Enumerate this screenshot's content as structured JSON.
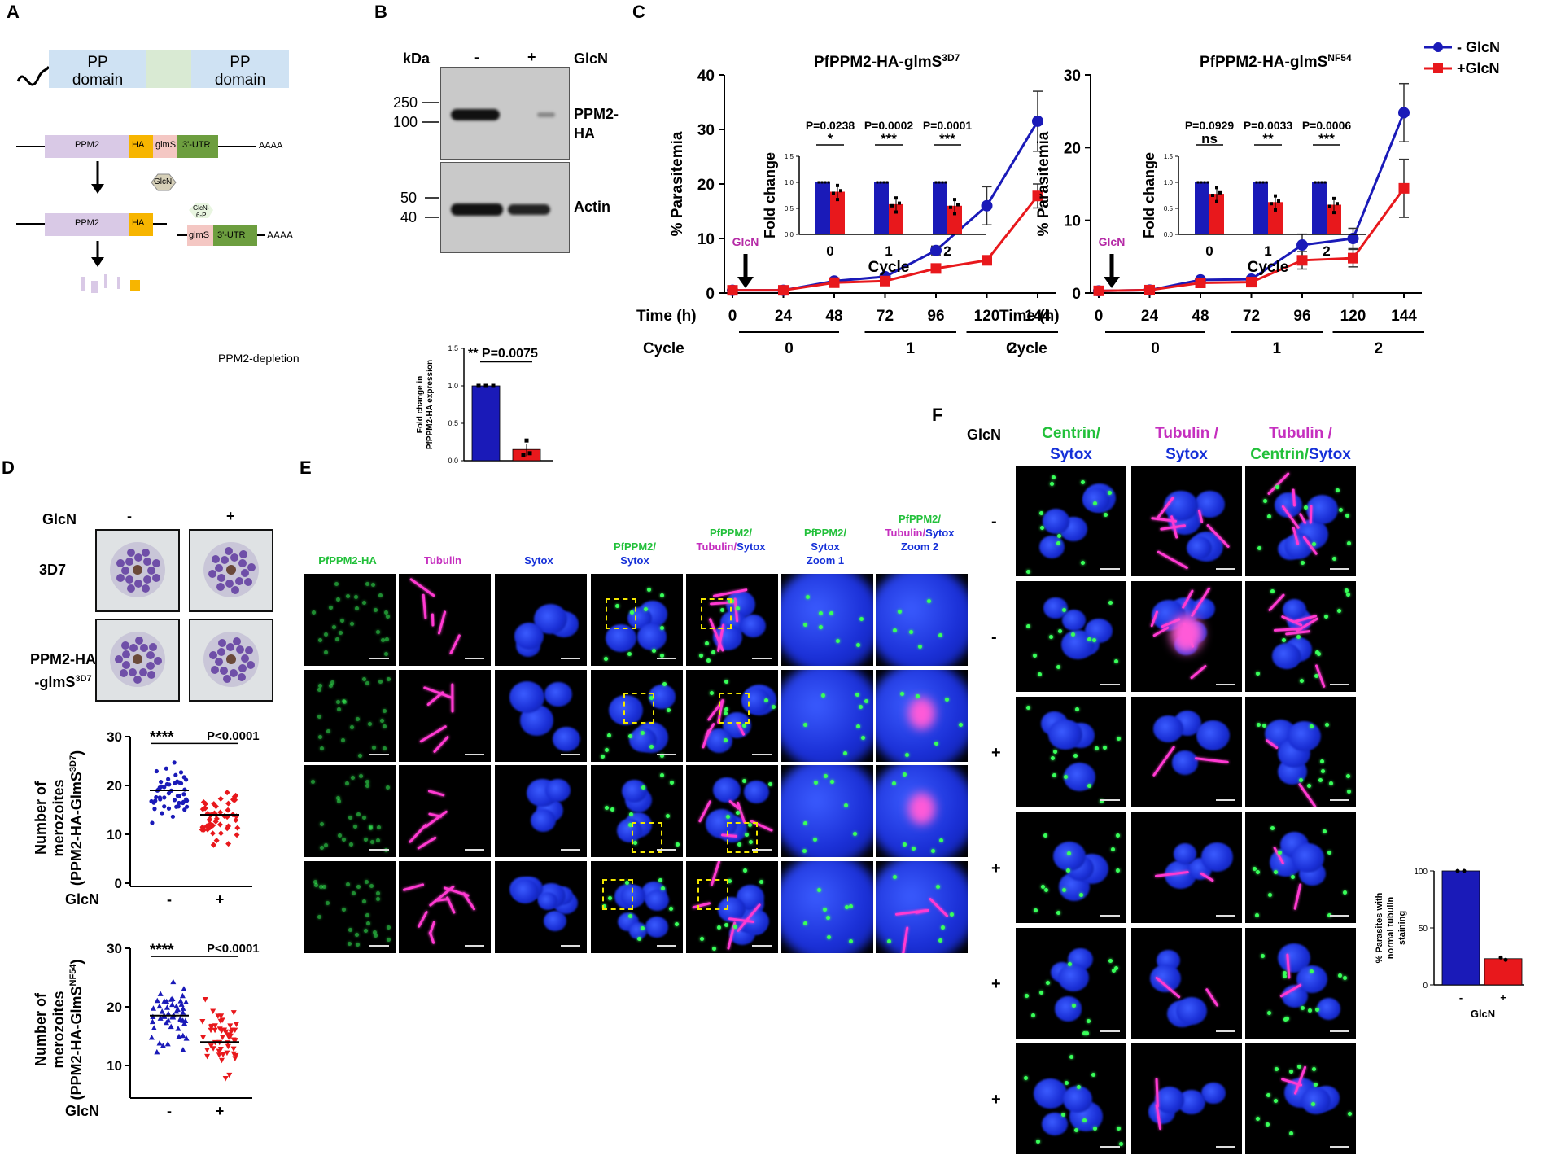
{
  "panels": {
    "A": "A",
    "B": "B",
    "C": "C",
    "D": "D",
    "E": "E",
    "F": "F"
  },
  "panelA": {
    "pp_domain_1": [
      "PP",
      "domain"
    ],
    "pp_domain_2": [
      "PP",
      "domain"
    ],
    "construct": [
      "PPM2",
      "HA",
      "glmS",
      "3'-UTR",
      "AAAA"
    ],
    "glcn": "GlcN",
    "glcn6p": [
      "GlcN-",
      "6-P"
    ],
    "cleaved_left": [
      "PPM2",
      "HA"
    ],
    "cleaved_right": [
      "glmS",
      "3'-UTR",
      "AAAA"
    ],
    "depletion": "PPM2-depletion"
  },
  "panelB": {
    "kda": "kDa",
    "minus": "-",
    "plus": "+",
    "glcn": "GlcN",
    "markers_top": [
      "250",
      "100"
    ],
    "markers_bottom": [
      "50",
      "40"
    ],
    "band_top": [
      "PPM2-",
      "HA"
    ],
    "band_bottom": "Actin",
    "chart_data": {
      "type": "bar",
      "categories": [
        "-",
        "+"
      ],
      "values": [
        1.0,
        0.15
      ],
      "ylabel": "Fold change in PfPPM2-HA expression",
      "xlabel": "GlcN",
      "yticks": [
        "0.0",
        "0.5",
        "1.0",
        "1.5"
      ],
      "ylim": [
        0,
        1.5
      ],
      "annotation": "** P=0.0075",
      "colors": [
        "#1a1ab8",
        "#e8181c"
      ]
    }
  },
  "panelC": {
    "legend": [
      "- GlcN",
      "+GlcN"
    ],
    "time_label": "Time (h)",
    "cycle_label": "Cycle",
    "cycles": [
      "0",
      "1",
      "2"
    ],
    "glcn_arrow": "GlcN",
    "chart_data": [
      {
        "type": "line",
        "title": "PfPPM2-HA-glmS",
        "title_sup": "3D7",
        "ylabel": "% Parasitemia",
        "x": [
          0,
          24,
          48,
          72,
          96,
          120,
          144
        ],
        "ylim": [
          0,
          40
        ],
        "yticks": [
          "0",
          "10",
          "20",
          "30",
          "40"
        ],
        "series": [
          {
            "name": "- GlcN",
            "values": [
              0.5,
              0.5,
              2.2,
              3.0,
              7.8,
              16.0,
              31.5
            ],
            "err": [
              0,
              0,
              0.3,
              0.4,
              0.8,
              3.5,
              5.5
            ]
          },
          {
            "name": "+GlcN",
            "values": [
              0.5,
              0.5,
              1.9,
              2.2,
              4.5,
              6.0,
              17.8
            ],
            "err": [
              0,
              0,
              0.3,
              0.3,
              0.5,
              0.5,
              2.2
            ]
          }
        ],
        "inset": {
          "ylabel": "Fold change",
          "xlabel": "Cycle",
          "categories": [
            "0",
            "1",
            "2"
          ],
          "minus": [
            1.0,
            1.0,
            1.0
          ],
          "plus": [
            0.82,
            0.58,
            0.55
          ],
          "pvalues": [
            "P=0.0238",
            "P=0.0002",
            "P=0.0001"
          ],
          "stars": [
            "*",
            "***",
            "***"
          ],
          "yticks": [
            "0.0",
            "0.5",
            "1.0",
            "1.5"
          ]
        }
      },
      {
        "type": "line",
        "title": "PfPPM2-HA-glmS",
        "title_sup": "NF54",
        "ylabel": "% Parasitemia",
        "x": [
          0,
          24,
          48,
          72,
          96,
          120,
          144
        ],
        "ylim": [
          0,
          30
        ],
        "yticks": [
          "0",
          "10",
          "20",
          "30"
        ],
        "series": [
          {
            "name": "- GlcN",
            "values": [
              0.3,
              0.4,
              1.8,
              1.9,
              6.6,
              7.5,
              24.8
            ],
            "err": [
              0,
              0,
              0.2,
              0.2,
              1.5,
              1.4,
              4.0
            ]
          },
          {
            "name": "+GlcN",
            "values": [
              0.3,
              0.4,
              1.4,
              1.5,
              4.5,
              4.8,
              14.4
            ],
            "err": [
              0,
              0,
              0.2,
              0.2,
              1.2,
              1.2,
              4.0
            ]
          }
        ],
        "inset": {
          "ylabel": "Fold change",
          "xlabel": "Cycle",
          "categories": [
            "0",
            "1",
            "2"
          ],
          "minus": [
            1.0,
            1.0,
            1.0
          ],
          "plus": [
            0.78,
            0.62,
            0.57
          ],
          "pvalues": [
            "P=0.0929",
            "P=0.0033",
            "P=0.0006"
          ],
          "stars": [
            "ns",
            "**",
            "***"
          ],
          "yticks": [
            "0.0",
            "0.5",
            "1.0",
            "1.5"
          ]
        }
      }
    ]
  },
  "panelD": {
    "glcn": "GlcN",
    "minus": "-",
    "plus": "+",
    "row1": "3D7",
    "row2": [
      "PPM2-HA",
      "-glmS"
    ],
    "row2_sup": "3D7",
    "chart_data": [
      {
        "type": "scatter",
        "ylabel": [
          "Number of",
          "merozoites",
          "(PPM2-HA-GlmS"
        ],
        "ylabel_sup": "3D7",
        "categories": [
          "-",
          "+"
        ],
        "means": [
          19,
          14
        ],
        "ylim": [
          0,
          30
        ],
        "yticks": [
          "0",
          "10",
          "20",
          "30"
        ],
        "annotation": [
          "****",
          "P<0.0001"
        ],
        "xlabel": "GlcN"
      },
      {
        "type": "scatter",
        "ylabel": [
          "Number of",
          "merozoites",
          "(PPM2-HA-GlmS"
        ],
        "ylabel_sup": "NF54",
        "categories": [
          "-",
          "+"
        ],
        "means": [
          18.5,
          14
        ],
        "ylim": [
          0,
          30
        ],
        "yticks": [
          "10",
          "20",
          "30"
        ],
        "annotation": [
          "****",
          "P<0.0001"
        ],
        "xlabel": "GlcN"
      }
    ]
  },
  "panelE": {
    "headers": [
      [
        {
          "t": "PfPPM2-HA",
          "c": "#22c03a"
        }
      ],
      [
        {
          "t": "Tubulin",
          "c": "#c52fbf"
        }
      ],
      [
        {
          "t": "Sytox",
          "c": "#1530d8"
        }
      ],
      [
        {
          "t": "PfPPM2/",
          "c": "#22c03a"
        },
        {
          "t": "Sytox",
          "c": "#1530d8"
        }
      ],
      [
        {
          "t": "PfPPM2/",
          "c": "#22c03a"
        },
        {
          "t": "Tubulin/",
          "c": "#c52fbf"
        },
        {
          "t": "Sytox",
          "c": "#1530d8"
        }
      ],
      [
        {
          "t": "PfPPM2/",
          "c": "#22c03a"
        },
        {
          "t": "Sytox",
          "c": "#1530d8"
        },
        {
          "t": "Zoom 1",
          "c": "#1530d8"
        }
      ],
      [
        {
          "t": "PfPPM2/",
          "c": "#22c03a"
        },
        {
          "t": "Tubulin/",
          "c": "#c52fbf"
        },
        {
          "t": "Sytox",
          "c": "#1530d8"
        },
        {
          "t": "Zoom 2",
          "c": "#1530d8"
        }
      ]
    ]
  },
  "panelF": {
    "glcn": "GlcN",
    "headers": [
      [
        "Centrin/",
        "Sytox"
      ],
      [
        "Tubulin /",
        "Sytox"
      ],
      [
        "Tubulin /",
        "Centrin/",
        "Sytox"
      ]
    ],
    "rows": [
      "-",
      "-",
      "+",
      "+",
      "+",
      "+"
    ],
    "chart_data": {
      "type": "bar",
      "categories": [
        "-",
        "+"
      ],
      "values": [
        100,
        23
      ],
      "ylabel": "% Parasites with normal tubulin staining",
      "xlabel": "GlcN",
      "yticks": [
        "0",
        "50",
        "100"
      ],
      "ylim": [
        0,
        100
      ],
      "colors": [
        "#1a1ab8",
        "#e8181c"
      ]
    }
  }
}
